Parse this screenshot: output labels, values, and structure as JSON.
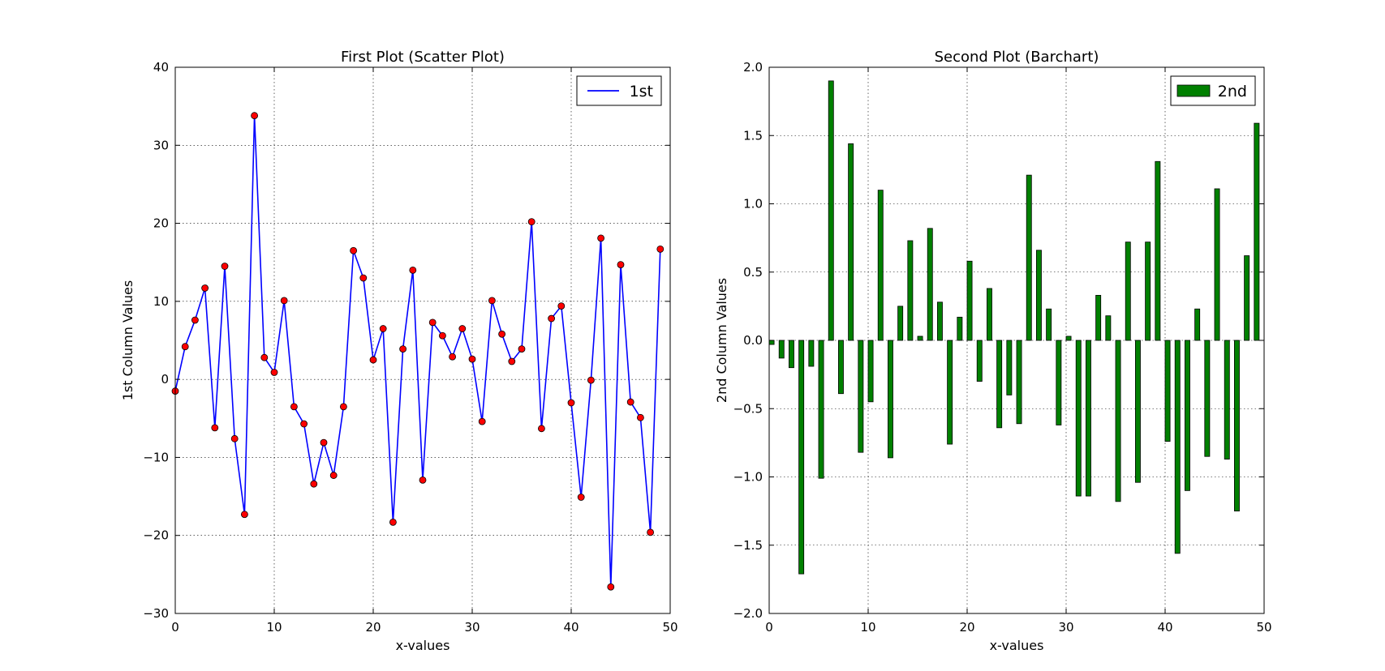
{
  "chart_data": [
    {
      "type": "line",
      "title": "First Plot (Scatter Plot)",
      "xlabel": "x-values",
      "ylabel": "1st Column Values",
      "xlim": [
        0,
        50
      ],
      "ylim": [
        -30,
        40
      ],
      "xticks": [
        0,
        10,
        20,
        30,
        40,
        50
      ],
      "yticks": [
        -30,
        -20,
        -10,
        0,
        10,
        20,
        30,
        40
      ],
      "xtick_labels": [
        "0",
        "10",
        "20",
        "30",
        "40",
        "50"
      ],
      "ytick_labels": [
        "−30",
        "−20",
        "−10",
        "0",
        "10",
        "20",
        "30",
        "40"
      ],
      "grid": true,
      "legend_position": "top-right",
      "series": [
        {
          "name": "1st",
          "line_color": "#0000ff",
          "marker_color": "#ff0000",
          "x": [
            0,
            1,
            2,
            3,
            4,
            5,
            6,
            7,
            8,
            9,
            10,
            11,
            12,
            13,
            14,
            15,
            16,
            17,
            18,
            19,
            20,
            21,
            22,
            23,
            24,
            25,
            26,
            27,
            28,
            29,
            30,
            31,
            32,
            33,
            34,
            35,
            36,
            37,
            38,
            39,
            40,
            41,
            42,
            43,
            44,
            45,
            46,
            47,
            48,
            49
          ],
          "y": [
            -1.5,
            4.2,
            7.6,
            11.7,
            -6.2,
            14.5,
            -7.6,
            -17.3,
            33.8,
            2.8,
            0.9,
            10.1,
            -3.5,
            -5.7,
            -13.4,
            -8.1,
            -12.3,
            -3.5,
            16.5,
            13.0,
            2.5,
            6.5,
            -18.3,
            3.9,
            14.0,
            -12.9,
            7.3,
            5.6,
            2.9,
            6.5,
            2.6,
            -5.4,
            10.1,
            5.8,
            2.3,
            3.9,
            20.2,
            -6.3,
            7.8,
            9.4,
            -3.0,
            -15.1,
            -0.1,
            18.1,
            -26.6,
            14.7,
            -2.9,
            -4.9,
            -19.6,
            16.7
          ]
        }
      ]
    },
    {
      "type": "bar",
      "title": "Second Plot (Barchart)",
      "xlabel": "x-values",
      "ylabel": "2nd Column Values",
      "xlim": [
        0,
        50
      ],
      "ylim": [
        -2.0,
        2.0
      ],
      "xticks": [
        0,
        10,
        20,
        30,
        40,
        50
      ],
      "yticks": [
        -2.0,
        -1.5,
        -1.0,
        -0.5,
        0.0,
        0.5,
        1.0,
        1.5,
        2.0
      ],
      "xtick_labels": [
        "0",
        "10",
        "20",
        "30",
        "40",
        "50"
      ],
      "ytick_labels": [
        "−2.0",
        "−1.5",
        "−1.0",
        "−0.5",
        "0.0",
        "0.5",
        "1.0",
        "1.5",
        "2.0"
      ],
      "grid": true,
      "legend_position": "top-right",
      "bar_width": 0.5,
      "series": [
        {
          "name": "2nd",
          "color": "#008000",
          "x": [
            0,
            1,
            2,
            3,
            4,
            5,
            6,
            7,
            8,
            9,
            10,
            11,
            12,
            13,
            14,
            15,
            16,
            17,
            18,
            19,
            20,
            21,
            22,
            23,
            24,
            25,
            26,
            27,
            28,
            29,
            30,
            31,
            32,
            33,
            34,
            35,
            36,
            37,
            38,
            39,
            40,
            41,
            42,
            43,
            44,
            45,
            46,
            47,
            48,
            49
          ],
          "values": [
            -0.03,
            -0.13,
            -0.2,
            -1.71,
            -0.19,
            -1.01,
            1.9,
            -0.39,
            1.44,
            -0.82,
            -0.45,
            1.1,
            -0.86,
            0.25,
            0.73,
            0.03,
            0.82,
            0.28,
            -0.76,
            0.17,
            0.58,
            -0.3,
            0.38,
            -0.64,
            -0.4,
            -0.61,
            1.21,
            0.66,
            0.23,
            -0.62,
            0.03,
            -1.14,
            -1.14,
            0.33,
            0.18,
            -1.18,
            0.72,
            -1.04,
            0.72,
            1.31,
            -0.74,
            -1.56,
            -1.1,
            0.23,
            -0.85,
            1.11,
            -0.87,
            -1.25,
            0.62,
            1.59
          ]
        }
      ]
    }
  ]
}
